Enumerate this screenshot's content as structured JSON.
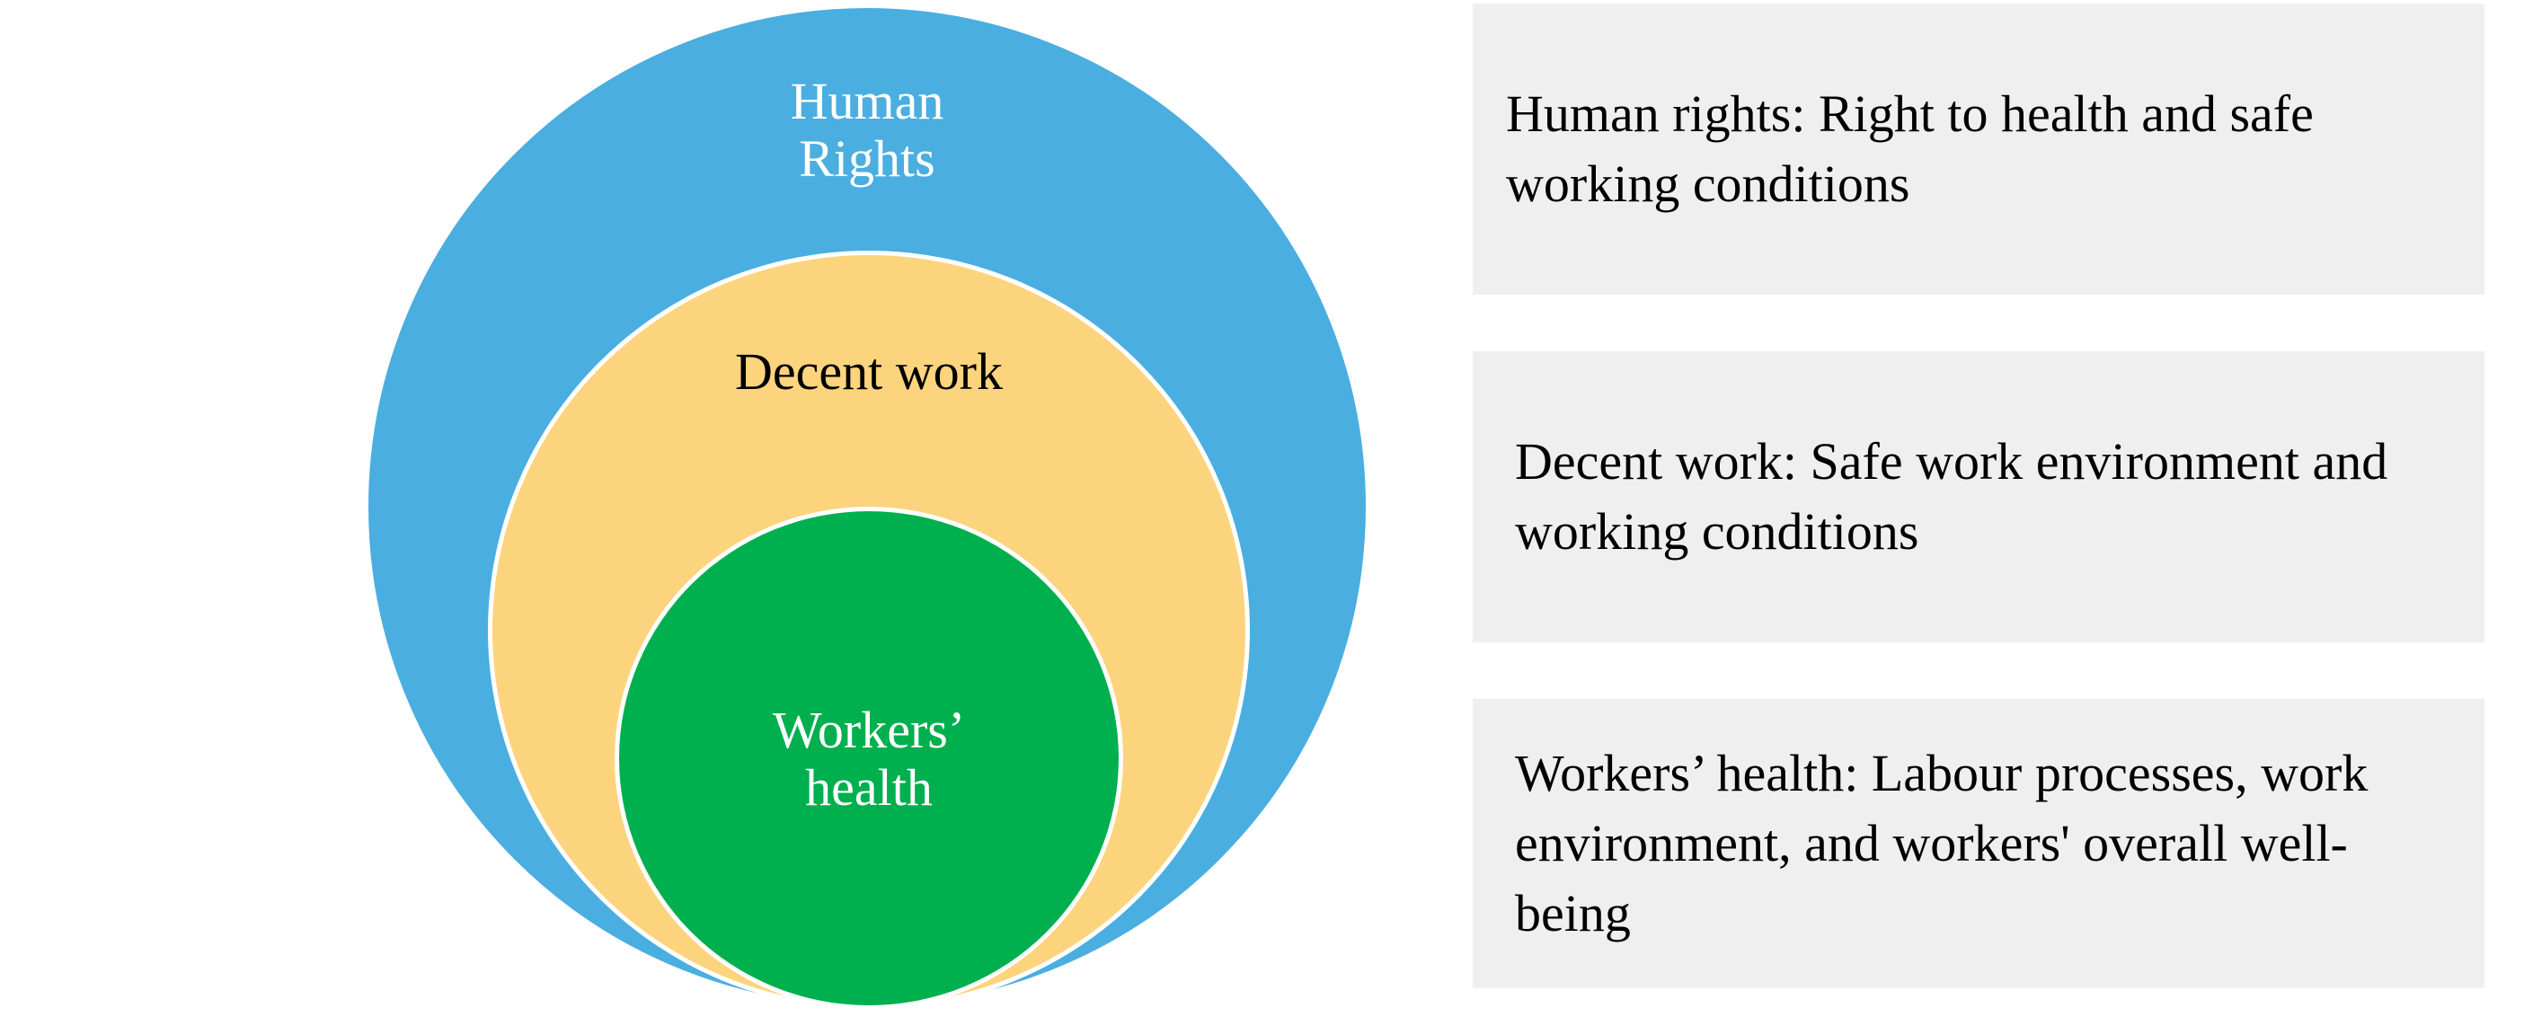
{
  "circles": {
    "outer": {
      "label": "Human\nRights",
      "fill": "#4AAEE0",
      "text_color": "#ffffff"
    },
    "middle": {
      "label": "Decent work",
      "fill": "#FCD47E",
      "text_color": "#000000"
    },
    "inner": {
      "label": "Workers’\nhealth",
      "fill": "#00AF4E",
      "text_color": "#ffffff"
    }
  },
  "boxes": [
    {
      "text": "Human rights: Right to health and safe working conditions"
    },
    {
      "text": "Decent work: Safe work environment and working conditions"
    },
    {
      "text": "Workers’ health: Labour processes, work environment, and workers' overall well-being"
    }
  ],
  "box_fill": "#EFEFEF"
}
